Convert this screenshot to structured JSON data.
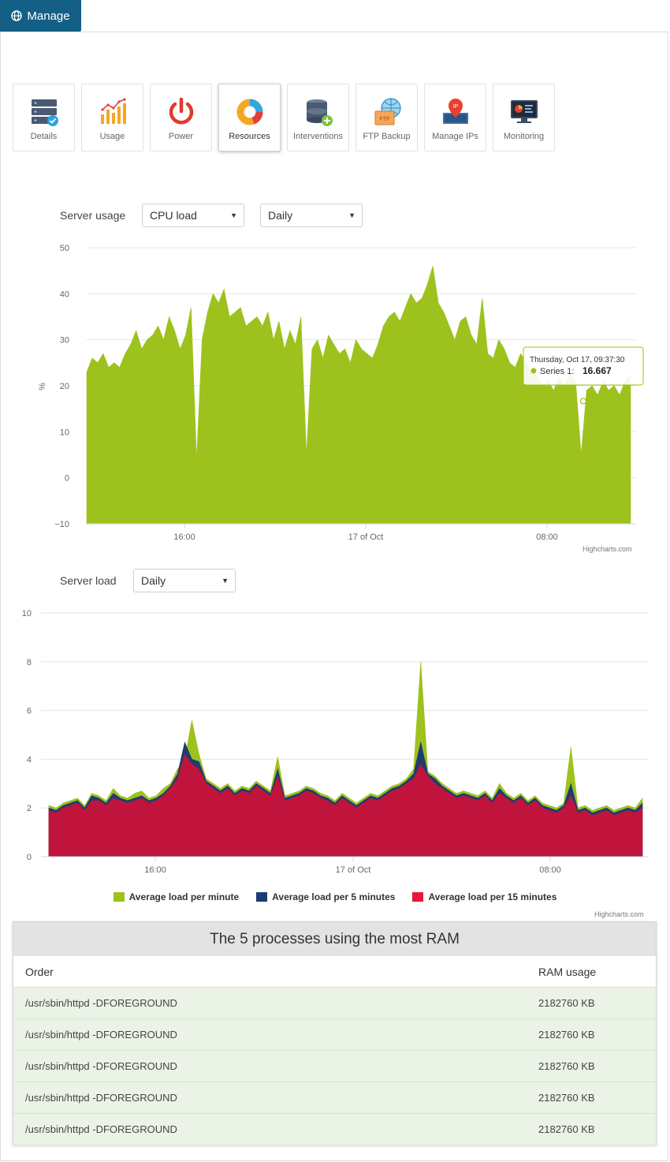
{
  "manage_tab": {
    "label": "Manage",
    "icon": "globe-icon"
  },
  "toolbar": {
    "items": [
      {
        "label": "Details",
        "icon": "server-details-icon"
      },
      {
        "label": "Usage",
        "icon": "usage-chart-icon"
      },
      {
        "label": "Power",
        "icon": "power-icon"
      },
      {
        "label": "Resources",
        "icon": "donut-resources-icon",
        "active": true
      },
      {
        "label": "Interventions",
        "icon": "database-add-icon"
      },
      {
        "label": "FTP Backup",
        "icon": "ftp-backup-icon"
      },
      {
        "label": "Manage IPs",
        "icon": "ip-pin-icon"
      },
      {
        "label": "Monitoring",
        "icon": "monitor-icon"
      }
    ]
  },
  "server_usage": {
    "label": "Server usage",
    "metric_select": "CPU load",
    "period_select": "Daily"
  },
  "server_load": {
    "label": "Server load",
    "period_select": "Daily"
  },
  "colors": {
    "green": "#9dc21e",
    "navy": "#1c3d72",
    "red": "#c0143c",
    "accent": "#135f86"
  },
  "chart_data": [
    {
      "type": "area",
      "ylabel": "%",
      "ylim": [
        -10,
        50
      ],
      "yticks": [
        "50",
        "40",
        "30",
        "20",
        "10",
        "0",
        "−10"
      ],
      "xticks": [
        "16:00",
        "17 of Oct",
        "08:00"
      ],
      "credit": "Highcharts.com",
      "series": [
        {
          "name": "Series 1",
          "color": "#9dc21e",
          "values": [
            23,
            26,
            25,
            27,
            24,
            25,
            24,
            27,
            29,
            32,
            28,
            30,
            31,
            33,
            30,
            35,
            32,
            28,
            31,
            37,
            4,
            30,
            36,
            40,
            38,
            41,
            35,
            36,
            37,
            33,
            34,
            35,
            33,
            36,
            30,
            34,
            28,
            32,
            29,
            35,
            5,
            28,
            30,
            26,
            31,
            29,
            27,
            28,
            25,
            30,
            28,
            27,
            26,
            29,
            33,
            35,
            36,
            34,
            37,
            40,
            38,
            39,
            42,
            46,
            38,
            36,
            33,
            30,
            34,
            35,
            31,
            29,
            39,
            27,
            26,
            30,
            28,
            25,
            24,
            27,
            25,
            23,
            22,
            20,
            21,
            19,
            22,
            20,
            23,
            21,
            5,
            19,
            20,
            18,
            21,
            19,
            20,
            18,
            21,
            22
          ]
        }
      ],
      "tooltip": {
        "title": "Thursday, Oct 17, 09:37:30",
        "series": "Series 1:",
        "value": "16.667"
      }
    },
    {
      "type": "area",
      "ylim": [
        0,
        10
      ],
      "yticks": [
        "10",
        "8",
        "6",
        "4",
        "2",
        "0"
      ],
      "xticks": [
        "16:00",
        "17 of Oct",
        "08:00"
      ],
      "credit": "Highcharts.com",
      "series": [
        {
          "name": "Average load per minute",
          "color": "#9dc21e",
          "values": [
            2.1,
            2.0,
            2.2,
            2.3,
            2.4,
            2.1,
            2.6,
            2.5,
            2.3,
            2.8,
            2.5,
            2.4,
            2.6,
            2.7,
            2.4,
            2.5,
            2.8,
            3.0,
            3.6,
            4.0,
            5.6,
            4.2,
            3.2,
            3.0,
            2.8,
            3.0,
            2.7,
            2.9,
            2.8,
            3.1,
            2.9,
            2.7,
            4.1,
            2.5,
            2.6,
            2.7,
            2.9,
            2.8,
            2.6,
            2.5,
            2.3,
            2.6,
            2.4,
            2.2,
            2.4,
            2.6,
            2.5,
            2.7,
            2.9,
            3.0,
            3.2,
            3.6,
            8.0,
            3.5,
            3.3,
            3.0,
            2.8,
            2.6,
            2.7,
            2.6,
            2.5,
            2.7,
            2.4,
            3.0,
            2.6,
            2.4,
            2.6,
            2.3,
            2.5,
            2.2,
            2.1,
            2.0,
            2.2,
            4.5,
            2.0,
            2.1,
            1.9,
            2.0,
            2.1,
            1.9,
            2.0,
            2.1,
            2.0,
            2.4
          ]
        },
        {
          "name": "Average load per 5 minutes",
          "color": "#1c3d72",
          "values": [
            2.0,
            1.9,
            2.1,
            2.2,
            2.3,
            2.0,
            2.5,
            2.4,
            2.2,
            2.6,
            2.4,
            2.3,
            2.4,
            2.5,
            2.3,
            2.4,
            2.6,
            2.9,
            3.4,
            4.7,
            4.0,
            3.9,
            3.1,
            2.9,
            2.7,
            2.9,
            2.6,
            2.8,
            2.7,
            3.0,
            2.8,
            2.6,
            3.6,
            2.4,
            2.5,
            2.6,
            2.8,
            2.7,
            2.5,
            2.4,
            2.2,
            2.5,
            2.3,
            2.1,
            2.3,
            2.5,
            2.4,
            2.6,
            2.8,
            2.9,
            3.1,
            3.4,
            4.7,
            3.4,
            3.2,
            2.9,
            2.7,
            2.5,
            2.6,
            2.5,
            2.4,
            2.6,
            2.3,
            2.8,
            2.5,
            2.3,
            2.5,
            2.2,
            2.4,
            2.1,
            2.0,
            1.9,
            2.1,
            3.0,
            1.9,
            2.0,
            1.8,
            1.9,
            2.0,
            1.8,
            1.9,
            2.0,
            1.9,
            2.2
          ]
        },
        {
          "name": "Average load per 15 minutes",
          "color": "#c0143c",
          "values": [
            1.9,
            1.8,
            2.0,
            2.1,
            2.2,
            1.9,
            2.3,
            2.3,
            2.1,
            2.4,
            2.3,
            2.2,
            2.3,
            2.4,
            2.2,
            2.3,
            2.5,
            2.8,
            3.2,
            4.2,
            3.8,
            3.6,
            3.0,
            2.8,
            2.6,
            2.8,
            2.5,
            2.7,
            2.6,
            2.9,
            2.7,
            2.5,
            3.3,
            2.3,
            2.4,
            2.5,
            2.7,
            2.6,
            2.4,
            2.3,
            2.1,
            2.4,
            2.2,
            2.0,
            2.2,
            2.4,
            2.3,
            2.5,
            2.7,
            2.8,
            3.0,
            3.2,
            3.8,
            3.3,
            3.0,
            2.8,
            2.6,
            2.4,
            2.5,
            2.4,
            2.3,
            2.5,
            2.2,
            2.6,
            2.4,
            2.2,
            2.4,
            2.1,
            2.3,
            2.0,
            1.9,
            1.8,
            2.0,
            2.5,
            1.8,
            1.9,
            1.7,
            1.8,
            1.9,
            1.7,
            1.8,
            1.9,
            1.8,
            2.0
          ]
        }
      ]
    }
  ],
  "processes_table": {
    "title": "The 5 processes using the most RAM",
    "headers": [
      "Order",
      "RAM usage"
    ],
    "rows": [
      {
        "process": "/usr/sbin/httpd -DFOREGROUND",
        "ram": "2182760 KB"
      },
      {
        "process": "/usr/sbin/httpd -DFOREGROUND",
        "ram": "2182760 KB"
      },
      {
        "process": "/usr/sbin/httpd -DFOREGROUND",
        "ram": "2182760 KB"
      },
      {
        "process": "/usr/sbin/httpd -DFOREGROUND",
        "ram": "2182760 KB"
      },
      {
        "process": "/usr/sbin/httpd -DFOREGROUND",
        "ram": "2182760 KB"
      }
    ]
  }
}
